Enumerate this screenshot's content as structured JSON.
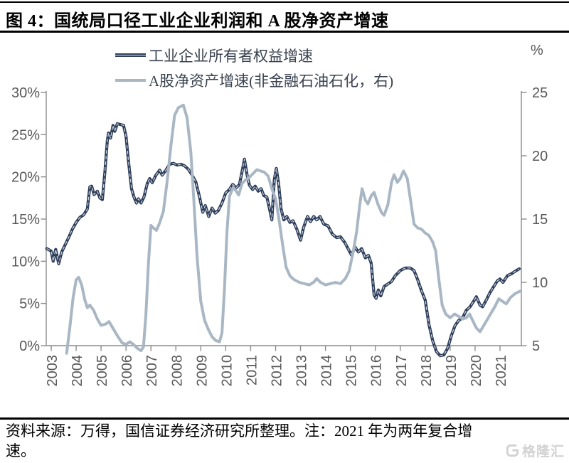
{
  "figure": {
    "title": "图 4：国统局口径工业企业利润和 A 股净资产增速",
    "source_note_line1": "资料来源：万得，国信证券经济研究所整理。注：2021 年为两年复合增",
    "source_note_line2": "速。",
    "watermark_text": "格隆汇"
  },
  "colors": {
    "industrial_line": "#2e3e5a",
    "industrial_line_core": "#dfe5ec",
    "a_share_line": "#a9b7c4",
    "axis": "#8c8c8c",
    "tick_label": "#595959",
    "rule": "#000000",
    "watermark": "#d2d2d2"
  },
  "chart_data": {
    "type": "line",
    "title": "国统局口径工业企业利润和 A 股净资产增速",
    "legend_position": "top",
    "grid": false,
    "left_axis": {
      "ticks": [
        "30%",
        "25%",
        "20%",
        "15%",
        "10%",
        "5%",
        "0%"
      ],
      "min": 0,
      "max": 30,
      "unit": "%"
    },
    "right_axis": {
      "ticks": [
        "25",
        "20",
        "15",
        "10",
        "5"
      ],
      "min": 5,
      "max": 25,
      "unit_label": "%"
    },
    "x_axis": {
      "labels": [
        "2003",
        "2004",
        "2005",
        "2006",
        "2007",
        "2008",
        "2009",
        "2010",
        "2011",
        "2012",
        "2013",
        "2014",
        "2015",
        "2016",
        "2017",
        "2018",
        "2019",
        "2020",
        "2021"
      ]
    },
    "series": [
      {
        "name": "工业企业所有者权益增速",
        "axis": "left",
        "color": "#2e3e5a",
        "core": "#dfe5ec",
        "width": 4.2,
        "points": [
          [
            2002.82,
            11.5
          ],
          [
            2003.0,
            11.2
          ],
          [
            2003.08,
            10.0
          ],
          [
            2003.18,
            11.4
          ],
          [
            2003.3,
            9.7
          ],
          [
            2003.42,
            11.1
          ],
          [
            2003.55,
            11.9
          ],
          [
            2003.7,
            12.8
          ],
          [
            2003.85,
            13.8
          ],
          [
            2004.0,
            14.6
          ],
          [
            2004.15,
            15.2
          ],
          [
            2004.3,
            15.5
          ],
          [
            2004.45,
            16.2
          ],
          [
            2004.55,
            18.8
          ],
          [
            2004.62,
            18.9
          ],
          [
            2004.72,
            17.9
          ],
          [
            2004.85,
            18.3
          ],
          [
            2004.95,
            17.5
          ],
          [
            2005.05,
            17.3
          ],
          [
            2005.15,
            20.5
          ],
          [
            2005.25,
            24.3
          ],
          [
            2005.3,
            25.2
          ],
          [
            2005.38,
            24.6
          ],
          [
            2005.48,
            26.1
          ],
          [
            2005.55,
            25.4
          ],
          [
            2005.65,
            26.3
          ],
          [
            2005.78,
            26.2
          ],
          [
            2005.9,
            26.1
          ],
          [
            2006.0,
            24.8
          ],
          [
            2006.1,
            21.8
          ],
          [
            2006.22,
            18.6
          ],
          [
            2006.32,
            17.6
          ],
          [
            2006.42,
            16.9
          ],
          [
            2006.5,
            17.4
          ],
          [
            2006.6,
            16.9
          ],
          [
            2006.72,
            17.6
          ],
          [
            2006.85,
            19.2
          ],
          [
            2006.95,
            19.8
          ],
          [
            2007.05,
            19.3
          ],
          [
            2007.2,
            20.2
          ],
          [
            2007.35,
            20.8
          ],
          [
            2007.45,
            20.2
          ],
          [
            2007.6,
            20.8
          ],
          [
            2007.75,
            21.5
          ],
          [
            2007.9,
            21.6
          ],
          [
            2008.05,
            21.4
          ],
          [
            2008.2,
            21.5
          ],
          [
            2008.35,
            21.3
          ],
          [
            2008.5,
            20.9
          ],
          [
            2008.65,
            20.2
          ],
          [
            2008.8,
            19.4
          ],
          [
            2008.95,
            17.6
          ],
          [
            2009.08,
            15.8
          ],
          [
            2009.18,
            16.6
          ],
          [
            2009.32,
            15.3
          ],
          [
            2009.45,
            16.3
          ],
          [
            2009.58,
            15.7
          ],
          [
            2009.7,
            16.0
          ],
          [
            2009.85,
            16.9
          ],
          [
            2010.0,
            18.1
          ],
          [
            2010.15,
            18.5
          ],
          [
            2010.28,
            19.1
          ],
          [
            2010.42,
            18.7
          ],
          [
            2010.55,
            19.1
          ],
          [
            2010.68,
            21.0
          ],
          [
            2010.75,
            22.1
          ],
          [
            2010.85,
            20.3
          ],
          [
            2010.95,
            19.0
          ],
          [
            2011.08,
            18.5
          ],
          [
            2011.18,
            18.9
          ],
          [
            2011.3,
            18.3
          ],
          [
            2011.42,
            18.6
          ],
          [
            2011.52,
            17.8
          ],
          [
            2011.65,
            17.6
          ],
          [
            2011.75,
            16.3
          ],
          [
            2011.85,
            14.9
          ],
          [
            2011.95,
            19.7
          ],
          [
            2012.03,
            21.0
          ],
          [
            2012.12,
            19.2
          ],
          [
            2012.22,
            16.2
          ],
          [
            2012.33,
            14.9
          ],
          [
            2012.45,
            15.3
          ],
          [
            2012.57,
            14.6
          ],
          [
            2012.7,
            14.8
          ],
          [
            2012.85,
            13.8
          ],
          [
            2013.0,
            12.5
          ],
          [
            2013.12,
            14.0
          ],
          [
            2013.28,
            15.3
          ],
          [
            2013.4,
            14.7
          ],
          [
            2013.53,
            15.3
          ],
          [
            2013.65,
            14.9
          ],
          [
            2013.78,
            15.3
          ],
          [
            2013.93,
            14.4
          ],
          [
            2014.1,
            14.2
          ],
          [
            2014.28,
            13.2
          ],
          [
            2014.45,
            12.8
          ],
          [
            2014.6,
            12.9
          ],
          [
            2014.78,
            12.2
          ],
          [
            2014.92,
            11.4
          ],
          [
            2015.05,
            10.7
          ],
          [
            2015.18,
            11.7
          ],
          [
            2015.32,
            11.1
          ],
          [
            2015.45,
            11.5
          ],
          [
            2015.6,
            10.4
          ],
          [
            2015.72,
            10.7
          ],
          [
            2015.83,
            9.8
          ],
          [
            2015.95,
            6.0
          ],
          [
            2016.03,
            5.6
          ],
          [
            2016.12,
            6.6
          ],
          [
            2016.22,
            5.9
          ],
          [
            2016.35,
            7.0
          ],
          [
            2016.5,
            7.3
          ],
          [
            2016.65,
            7.6
          ],
          [
            2016.8,
            8.3
          ],
          [
            2017.0,
            8.9
          ],
          [
            2017.2,
            9.2
          ],
          [
            2017.4,
            9.2
          ],
          [
            2017.55,
            8.9
          ],
          [
            2017.7,
            7.8
          ],
          [
            2017.85,
            6.5
          ],
          [
            2018.0,
            5.4
          ],
          [
            2018.15,
            2.5
          ],
          [
            2018.3,
            0.6
          ],
          [
            2018.45,
            -0.7
          ],
          [
            2018.6,
            -1.2
          ],
          [
            2018.75,
            -1.1
          ],
          [
            2018.9,
            -0.3
          ],
          [
            2019.05,
            1.2
          ],
          [
            2019.2,
            2.4
          ],
          [
            2019.35,
            3.0
          ],
          [
            2019.5,
            3.3
          ],
          [
            2019.65,
            4.2
          ],
          [
            2019.8,
            4.6
          ],
          [
            2019.95,
            5.3
          ],
          [
            2020.05,
            5.8
          ],
          [
            2020.2,
            4.8
          ],
          [
            2020.3,
            4.6
          ],
          [
            2020.45,
            5.4
          ],
          [
            2020.6,
            6.3
          ],
          [
            2020.75,
            7.0
          ],
          [
            2020.9,
            7.7
          ],
          [
            2021.0,
            7.9
          ],
          [
            2021.12,
            7.5
          ],
          [
            2021.3,
            8.3
          ],
          [
            2021.45,
            8.5
          ],
          [
            2021.6,
            8.8
          ],
          [
            2021.77,
            9.1
          ]
        ]
      },
      {
        "name": "A股净资产增速(非金融石油石化，右)",
        "axis": "right",
        "color": "#a9b7c4",
        "width": 4,
        "points": [
          [
            2003.62,
            4.4
          ],
          [
            2003.75,
            6.5
          ],
          [
            2003.88,
            8.8
          ],
          [
            2004.0,
            10.2
          ],
          [
            2004.1,
            10.4
          ],
          [
            2004.22,
            9.8
          ],
          [
            2004.35,
            8.6
          ],
          [
            2004.45,
            8.0
          ],
          [
            2004.55,
            8.2
          ],
          [
            2004.7,
            7.8
          ],
          [
            2004.85,
            7.1
          ],
          [
            2005.0,
            6.6
          ],
          [
            2005.18,
            6.7
          ],
          [
            2005.32,
            6.9
          ],
          [
            2005.5,
            6.3
          ],
          [
            2005.68,
            5.7
          ],
          [
            2005.85,
            5.2
          ],
          [
            2006.0,
            5.1
          ],
          [
            2006.15,
            5.3
          ],
          [
            2006.3,
            5.1
          ],
          [
            2006.45,
            4.8
          ],
          [
            2006.6,
            4.6
          ],
          [
            2006.7,
            4.9
          ],
          [
            2006.8,
            7.5
          ],
          [
            2006.9,
            11.5
          ],
          [
            2007.0,
            14.5
          ],
          [
            2007.1,
            14.3
          ],
          [
            2007.22,
            14.1
          ],
          [
            2007.35,
            14.7
          ],
          [
            2007.5,
            15.6
          ],
          [
            2007.65,
            18.0
          ],
          [
            2007.8,
            20.8
          ],
          [
            2007.95,
            23.2
          ],
          [
            2008.1,
            23.8
          ],
          [
            2008.3,
            24.0
          ],
          [
            2008.45,
            23.0
          ],
          [
            2008.6,
            20.3
          ],
          [
            2008.72,
            16.5
          ],
          [
            2008.85,
            12.0
          ],
          [
            2009.0,
            8.5
          ],
          [
            2009.15,
            7.0
          ],
          [
            2009.3,
            6.3
          ],
          [
            2009.45,
            5.7
          ],
          [
            2009.6,
            5.4
          ],
          [
            2009.75,
            5.3
          ],
          [
            2009.85,
            6.0
          ],
          [
            2009.95,
            9.5
          ],
          [
            2010.05,
            14.0
          ],
          [
            2010.15,
            16.8
          ],
          [
            2010.3,
            17.5
          ],
          [
            2010.42,
            17.2
          ],
          [
            2010.52,
            16.9
          ],
          [
            2010.65,
            17.8
          ],
          [
            2010.8,
            18.1
          ],
          [
            2010.95,
            18.3
          ],
          [
            2011.1,
            18.6
          ],
          [
            2011.25,
            18.9
          ],
          [
            2011.4,
            18.8
          ],
          [
            2011.55,
            18.7
          ],
          [
            2011.7,
            18.4
          ],
          [
            2011.85,
            17.4
          ],
          [
            2012.0,
            16.6
          ],
          [
            2012.12,
            15.2
          ],
          [
            2012.28,
            13.0
          ],
          [
            2012.42,
            11.2
          ],
          [
            2012.58,
            10.5
          ],
          [
            2012.75,
            10.2
          ],
          [
            2012.95,
            10.0
          ],
          [
            2013.15,
            9.9
          ],
          [
            2013.35,
            9.8
          ],
          [
            2013.52,
            10.0
          ],
          [
            2013.65,
            10.3
          ],
          [
            2013.8,
            10.0
          ],
          [
            2014.0,
            9.8
          ],
          [
            2014.2,
            9.9
          ],
          [
            2014.4,
            10.0
          ],
          [
            2014.6,
            9.9
          ],
          [
            2014.8,
            10.3
          ],
          [
            2014.95,
            10.9
          ],
          [
            2015.1,
            12.3
          ],
          [
            2015.25,
            14.0
          ],
          [
            2015.38,
            16.2
          ],
          [
            2015.47,
            17.4
          ],
          [
            2015.6,
            16.5
          ],
          [
            2015.7,
            16.2
          ],
          [
            2015.85,
            16.9
          ],
          [
            2015.95,
            17.1
          ],
          [
            2016.1,
            16.2
          ],
          [
            2016.25,
            15.5
          ],
          [
            2016.35,
            15.3
          ],
          [
            2016.5,
            16.1
          ],
          [
            2016.65,
            17.9
          ],
          [
            2016.75,
            18.5
          ],
          [
            2016.88,
            17.9
          ],
          [
            2017.0,
            18.2
          ],
          [
            2017.13,
            18.8
          ],
          [
            2017.28,
            18.2
          ],
          [
            2017.42,
            16.4
          ],
          [
            2017.55,
            14.6
          ],
          [
            2017.7,
            14.3
          ],
          [
            2017.85,
            14.2
          ],
          [
            2018.0,
            13.9
          ],
          [
            2018.15,
            13.7
          ],
          [
            2018.3,
            13.2
          ],
          [
            2018.42,
            12.5
          ],
          [
            2018.55,
            10.2
          ],
          [
            2018.68,
            8.2
          ],
          [
            2018.82,
            7.5
          ],
          [
            2019.0,
            7.2
          ],
          [
            2019.18,
            7.5
          ],
          [
            2019.35,
            7.3
          ],
          [
            2019.5,
            7.1
          ],
          [
            2019.65,
            7.2
          ],
          [
            2019.78,
            7.5
          ],
          [
            2019.9,
            7.0
          ],
          [
            2020.05,
            6.4
          ],
          [
            2020.2,
            6.1
          ],
          [
            2020.35,
            6.6
          ],
          [
            2020.5,
            7.1
          ],
          [
            2020.65,
            7.6
          ],
          [
            2020.8,
            8.1
          ],
          [
            2020.95,
            8.7
          ],
          [
            2021.1,
            8.5
          ],
          [
            2021.25,
            8.3
          ],
          [
            2021.42,
            8.8
          ],
          [
            2021.6,
            9.1
          ],
          [
            2021.8,
            9.3
          ]
        ]
      }
    ]
  }
}
